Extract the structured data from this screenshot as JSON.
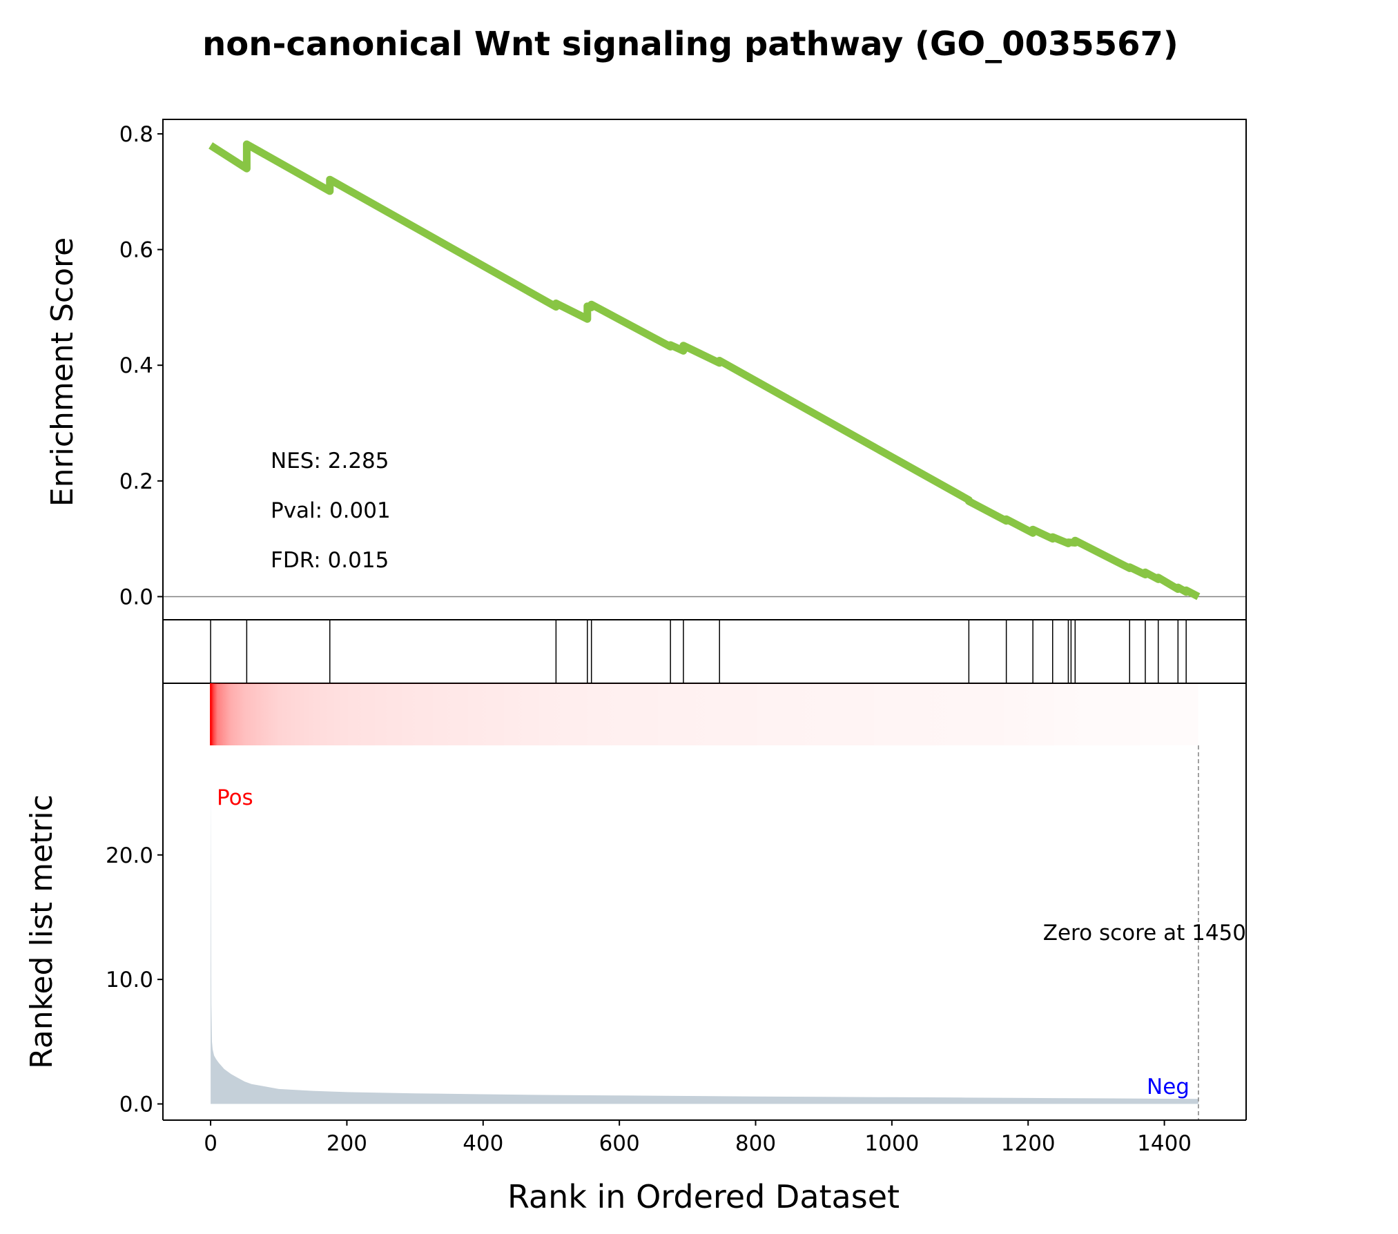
{
  "colors": {
    "es_line": "#88c544",
    "metric_fill": "#c5d0d9",
    "pos_label": "#ff0000",
    "neg_label": "#0000ff",
    "heat_color": "#ff0000"
  },
  "chart_data": {
    "type": "line",
    "title": "non-canonical Wnt signaling pathway (GO_0035567)",
    "xlabel": "Rank in Ordered Dataset",
    "xlim": [
      -70,
      1520
    ],
    "x_ticks": [
      0,
      200,
      400,
      600,
      800,
      1000,
      1200,
      1400
    ],
    "x_tick_labels": [
      "0",
      "200",
      "400",
      "600",
      "800",
      "1000",
      "1200",
      "1400"
    ],
    "es_panel": {
      "ylabel": "Enrichment Score",
      "ylim": [
        -0.04,
        0.825
      ],
      "y_ticks": [
        0.0,
        0.2,
        0.4,
        0.6,
        0.8
      ],
      "y_tick_labels": [
        "0.0",
        "0.2",
        "0.4",
        "0.6",
        "0.8"
      ],
      "zero_line": true,
      "series": [
        {
          "x": [
            0,
            53,
            53,
            175,
            175,
            507,
            507,
            553,
            553,
            559,
            559,
            675,
            675,
            694,
            694,
            747,
            747,
            1113,
            1113,
            1168,
            1168,
            1207,
            1207,
            1236,
            1236,
            1259,
            1259,
            1269,
            1269,
            1349,
            1349,
            1372,
            1372,
            1391,
            1391,
            1420,
            1420,
            1432,
            1432,
            1450
          ],
          "y": [
            0.78,
            0.74,
            0.782,
            0.701,
            0.721,
            0.501,
            0.507,
            0.48,
            0.502,
            0.5,
            0.505,
            0.432,
            0.435,
            0.425,
            0.434,
            0.404,
            0.408,
            0.167,
            0.165,
            0.131,
            0.134,
            0.11,
            0.116,
            0.1,
            0.103,
            0.092,
            0.094,
            0.093,
            0.097,
            0.049,
            0.051,
            0.038,
            0.042,
            0.03,
            0.033,
            0.013,
            0.016,
            0.008,
            0.011,
            0.0
          ]
        }
      ],
      "annotations": [
        "NES: 2.285",
        "Pval: 0.001",
        "FDR: 0.015"
      ]
    },
    "hits_panel": {
      "hit_ranks": [
        0,
        53,
        175,
        507,
        553,
        559,
        675,
        694,
        747,
        1113,
        1168,
        1207,
        1236,
        1259,
        1263,
        1269,
        1349,
        1372,
        1391,
        1420,
        1432
      ]
    },
    "metric_panel": {
      "ylabel": "Ranked list metric",
      "ylim": [
        -1.3,
        28.8
      ],
      "y_ticks": [
        0.0,
        10.0,
        20.0
      ],
      "y_tick_labels": [
        "0.0",
        "10.0",
        "20.0"
      ],
      "type": "area",
      "x": [
        0,
        1,
        2,
        3,
        5,
        8,
        12,
        20,
        30,
        40,
        50,
        60,
        80,
        100,
        150,
        200,
        300,
        400,
        500,
        600,
        700,
        800,
        900,
        1000,
        1100,
        1200,
        1300,
        1400,
        1450
      ],
      "y": [
        26.2,
        8.0,
        5.0,
        4.4,
        3.9,
        3.6,
        3.3,
        2.8,
        2.4,
        2.1,
        1.8,
        1.6,
        1.4,
        1.2,
        1.05,
        0.95,
        0.85,
        0.78,
        0.72,
        0.68,
        0.64,
        0.6,
        0.57,
        0.54,
        0.51,
        0.48,
        0.45,
        0.42,
        0.4
      ],
      "pos_label": "Pos",
      "neg_label": "Neg",
      "zero_score_label": "Zero score at 1450",
      "zero_score_rank": 1450
    },
    "heatmap_strip": {
      "x_end": 1450,
      "x": [
        0,
        5,
        10,
        20,
        30,
        50,
        80,
        100,
        150,
        200,
        300,
        400,
        500,
        600,
        780,
        1000,
        1150,
        1290,
        1450
      ],
      "intensity": [
        1.0,
        0.7,
        0.5,
        0.4,
        0.32,
        0.25,
        0.2,
        0.17,
        0.14,
        0.12,
        0.1,
        0.085,
        0.07,
        0.06,
        0.05,
        0.04,
        0.035,
        0.02,
        0.015
      ]
    },
    "grid": false,
    "legend": "none"
  }
}
